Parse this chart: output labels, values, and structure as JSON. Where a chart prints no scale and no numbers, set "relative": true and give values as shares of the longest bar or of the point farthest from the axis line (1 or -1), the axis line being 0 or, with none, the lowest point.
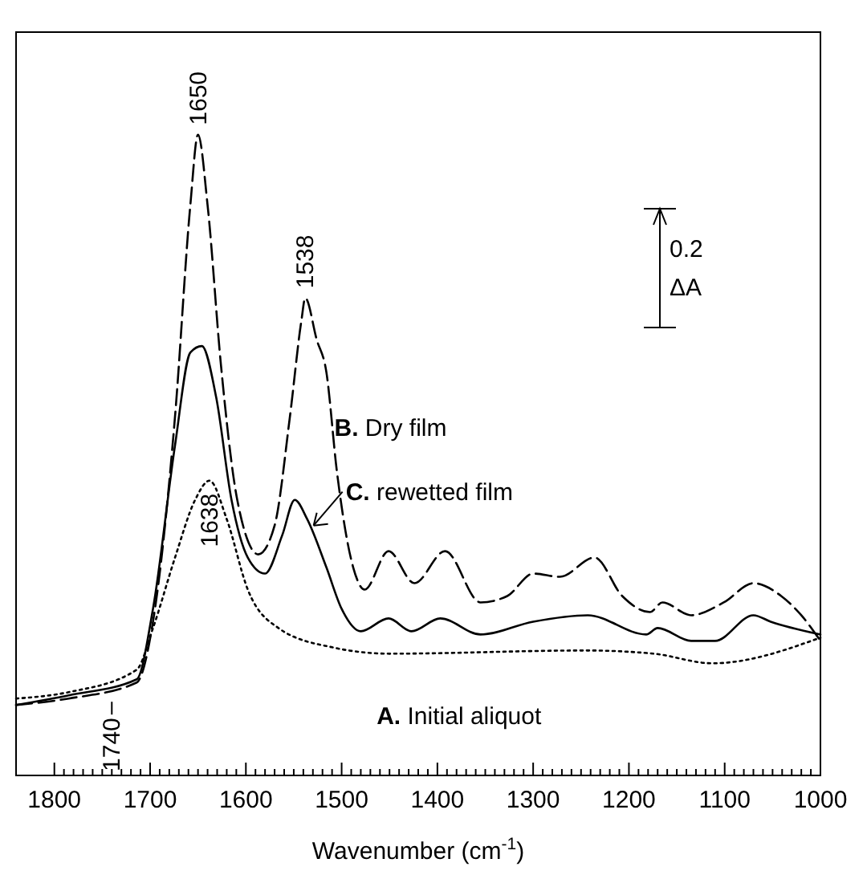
{
  "chart_data": {
    "type": "line",
    "relative": true,
    "xlabel": "Wavenumber (cm$^{-1}$)",
    "xlim": [
      1840,
      1000
    ],
    "xticks": [
      1800,
      {
        "value": 1790,
        "label": null
      },
      {
        "value": 1780,
        "label": null
      },
      {
        "value": 1770,
        "label": null
      },
      {
        "value": 1760,
        "label": null
      },
      {
        "value": 1750,
        "label": null
      },
      {
        "value": 1740,
        "label": null
      },
      {
        "value": 1730,
        "label": null
      },
      {
        "value": 1720,
        "label": null
      },
      {
        "value": 1710,
        "label": null
      },
      1700,
      {
        "value": 1690,
        "label": null
      },
      {
        "value": 1680,
        "label": null
      },
      {
        "value": 1670,
        "label": null
      },
      {
        "value": 1660,
        "label": null
      },
      {
        "value": 1650,
        "label": null
      },
      {
        "value": 1640,
        "label": null
      },
      {
        "value": 1630,
        "label": null
      },
      {
        "value": 1620,
        "label": null
      },
      {
        "value": 1610,
        "label": null
      },
      1600,
      {
        "value": 1590,
        "label": null
      },
      {
        "value": 1580,
        "label": null
      },
      {
        "value": 1570,
        "label": null
      },
      {
        "value": 1560,
        "label": null
      },
      {
        "value": 1550,
        "label": null
      },
      {
        "value": 1540,
        "label": null
      },
      {
        "value": 1530,
        "label": null
      },
      {
        "value": 1520,
        "label": null
      },
      {
        "value": 1510,
        "label": null
      },
      1500,
      {
        "value": 1490,
        "label": null
      },
      {
        "value": 1480,
        "label": null
      },
      {
        "value": 1470,
        "label": null
      },
      {
        "value": 1460,
        "label": null
      },
      {
        "value": 1450,
        "label": null
      },
      {
        "value": 1440,
        "label": null
      },
      {
        "value": 1430,
        "label": null
      },
      {
        "value": 1420,
        "label": null
      },
      {
        "value": 1410,
        "label": null
      },
      1400,
      {
        "value": 1390,
        "label": null
      },
      {
        "value": 1380,
        "label": null
      },
      {
        "value": 1370,
        "label": null
      },
      {
        "value": 1360,
        "label": null
      },
      {
        "value": 1350,
        "label": null
      },
      {
        "value": 1340,
        "label": null
      },
      {
        "value": 1330,
        "label": null
      },
      {
        "value": 1320,
        "label": null
      },
      {
        "value": 1310,
        "label": null
      },
      1300,
      {
        "value": 1290,
        "label": null
      },
      {
        "value": 1280,
        "label": null
      },
      {
        "value": 1270,
        "label": null
      },
      {
        "value": 1260,
        "label": null
      },
      {
        "value": 1250,
        "label": null
      },
      {
        "value": 1240,
        "label": null
      },
      {
        "value": 1230,
        "label": null
      },
      {
        "value": 1220,
        "label": null
      },
      {
        "value": 1210,
        "label": null
      },
      1200,
      {
        "value": 1190,
        "label": null
      },
      {
        "value": 1180,
        "label": null
      },
      {
        "value": 1170,
        "label": null
      },
      {
        "value": 1160,
        "label": null
      },
      {
        "value": 1150,
        "label": null
      },
      {
        "value": 1140,
        "label": null
      },
      {
        "value": 1130,
        "label": null
      },
      {
        "value": 1120,
        "label": null
      },
      {
        "value": 1110,
        "label": null
      },
      1100,
      {
        "value": 1090,
        "label": null
      },
      {
        "value": 1080,
        "label": null
      },
      {
        "value": 1070,
        "label": null
      },
      {
        "value": 1060,
        "label": null
      },
      {
        "value": 1050,
        "label": null
      },
      {
        "value": 1040,
        "label": null
      },
      {
        "value": 1030,
        "label": null
      },
      {
        "value": 1020,
        "label": null
      },
      {
        "value": 1010,
        "label": null
      },
      1000
    ],
    "series": [
      {
        "name": "A. Initial aliquot",
        "color": "#000000",
        "line_style": "dotted",
        "x": [
          1840,
          1785,
          1714,
          1697,
          1674,
          1653,
          1638,
          1620,
          1598,
          1566,
          1510,
          1450,
          1245,
          1174,
          1113,
          1000
        ],
        "values": [
          0.12,
          0.13,
          0.165,
          0.23,
          0.34,
          0.43,
          0.46,
          0.4,
          0.29,
          0.23,
          0.2,
          0.19,
          0.195,
          0.19,
          0.175,
          0.215
        ]
      },
      {
        "name": "B. Dry film",
        "color": "#000000",
        "line_style": "dashed",
        "x": [
          1840,
          1785,
          1714,
          1697,
          1674,
          1658,
          1650,
          1640,
          1626,
          1609,
          1587,
          1570,
          1554,
          1542,
          1538,
          1526,
          1516,
          1505,
          1488,
          1476,
          1451,
          1424,
          1392,
          1355,
          1327,
          1300,
          1272,
          1236,
          1207,
          1178,
          1165,
          1135,
          1101,
          1070,
          1041,
          1020,
          1000
        ],
        "values": [
          0.11,
          0.12,
          0.145,
          0.24,
          0.56,
          0.89,
          1.0,
          0.89,
          0.64,
          0.43,
          0.345,
          0.39,
          0.56,
          0.71,
          0.745,
          0.68,
          0.63,
          0.475,
          0.325,
          0.29,
          0.35,
          0.3,
          0.35,
          0.27,
          0.28,
          0.315,
          0.31,
          0.34,
          0.28,
          0.255,
          0.27,
          0.25,
          0.27,
          0.3,
          0.28,
          0.25,
          0.21
        ]
      },
      {
        "name": "C. rewetted film",
        "color": "#000000",
        "line_style": "solid",
        "x": [
          1840,
          1785,
          1714,
          1697,
          1674,
          1658,
          1646,
          1631,
          1615,
          1598,
          1580,
          1562,
          1549,
          1536,
          1516,
          1500,
          1480,
          1451,
          1427,
          1397,
          1355,
          1300,
          1243,
          1182,
          1170,
          1135,
          1110,
          1070,
          1052,
          1000
        ],
        "values": [
          0.11,
          0.125,
          0.15,
          0.26,
          0.515,
          0.66,
          0.67,
          0.59,
          0.43,
          0.34,
          0.315,
          0.375,
          0.43,
          0.4,
          0.325,
          0.26,
          0.225,
          0.245,
          0.225,
          0.245,
          0.22,
          0.24,
          0.25,
          0.22,
          0.23,
          0.21,
          0.21,
          0.25,
          0.24,
          0.22
        ]
      }
    ],
    "annotations": [
      {
        "text": "1650",
        "x": 1650,
        "y": 1.0
      },
      {
        "text": "1538",
        "x": 1538,
        "y": 0.745
      },
      {
        "text": "1638",
        "x": 1638,
        "y": 0.46
      },
      {
        "text": "1740",
        "x": 1740,
        "y": 0.12
      },
      "0.2 ΔA"
    ]
  }
}
